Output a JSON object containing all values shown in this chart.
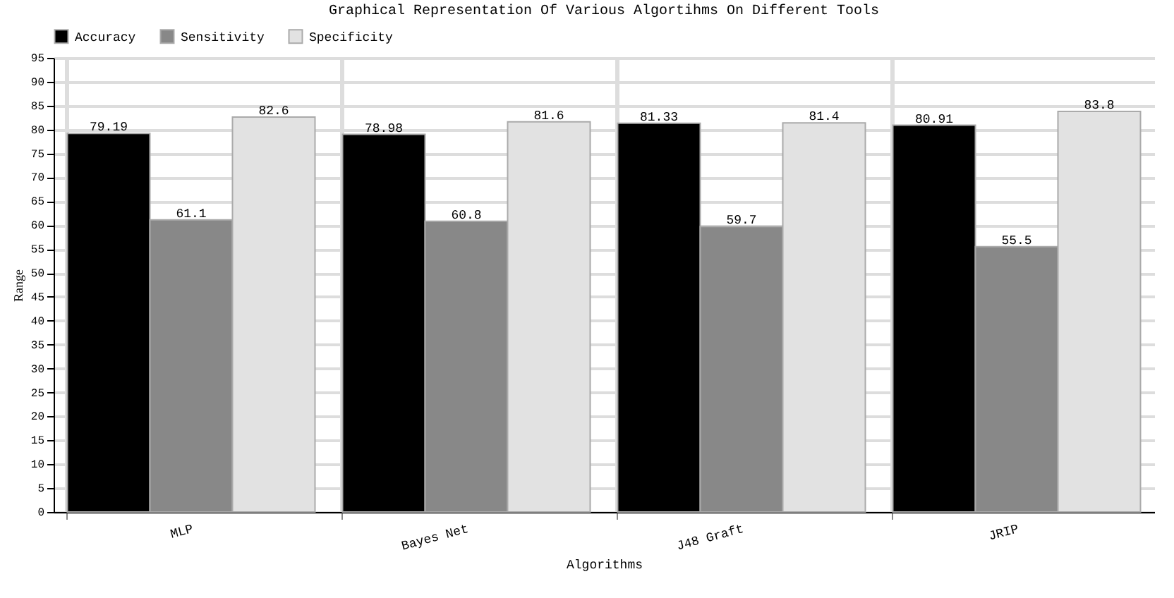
{
  "chart_data": {
    "type": "bar",
    "title": "Graphical Representation Of Various Algortihms On Different Tools",
    "xlabel": "Algorithms",
    "ylabel": "Range",
    "categories": [
      "MLP",
      "Bayes Net",
      "J48 Graft",
      "JRIP"
    ],
    "series": [
      {
        "name": "Accuracy",
        "color": "#000000",
        "values": [
          79.19,
          78.98,
          81.33,
          80.91
        ]
      },
      {
        "name": "Sensitivity",
        "color": "#888888",
        "values": [
          61.1,
          60.8,
          59.7,
          55.5
        ]
      },
      {
        "name": "Specificity",
        "color": "#e2e2e2",
        "values": [
          82.6,
          81.6,
          81.4,
          83.8
        ]
      }
    ],
    "ylim": [
      0,
      95
    ],
    "yticks": [
      0,
      5,
      10,
      15,
      20,
      25,
      30,
      35,
      40,
      45,
      50,
      55,
      60,
      65,
      70,
      75,
      80,
      85,
      90,
      95
    ],
    "grid": true,
    "legend": "top left",
    "data_labels": true
  }
}
